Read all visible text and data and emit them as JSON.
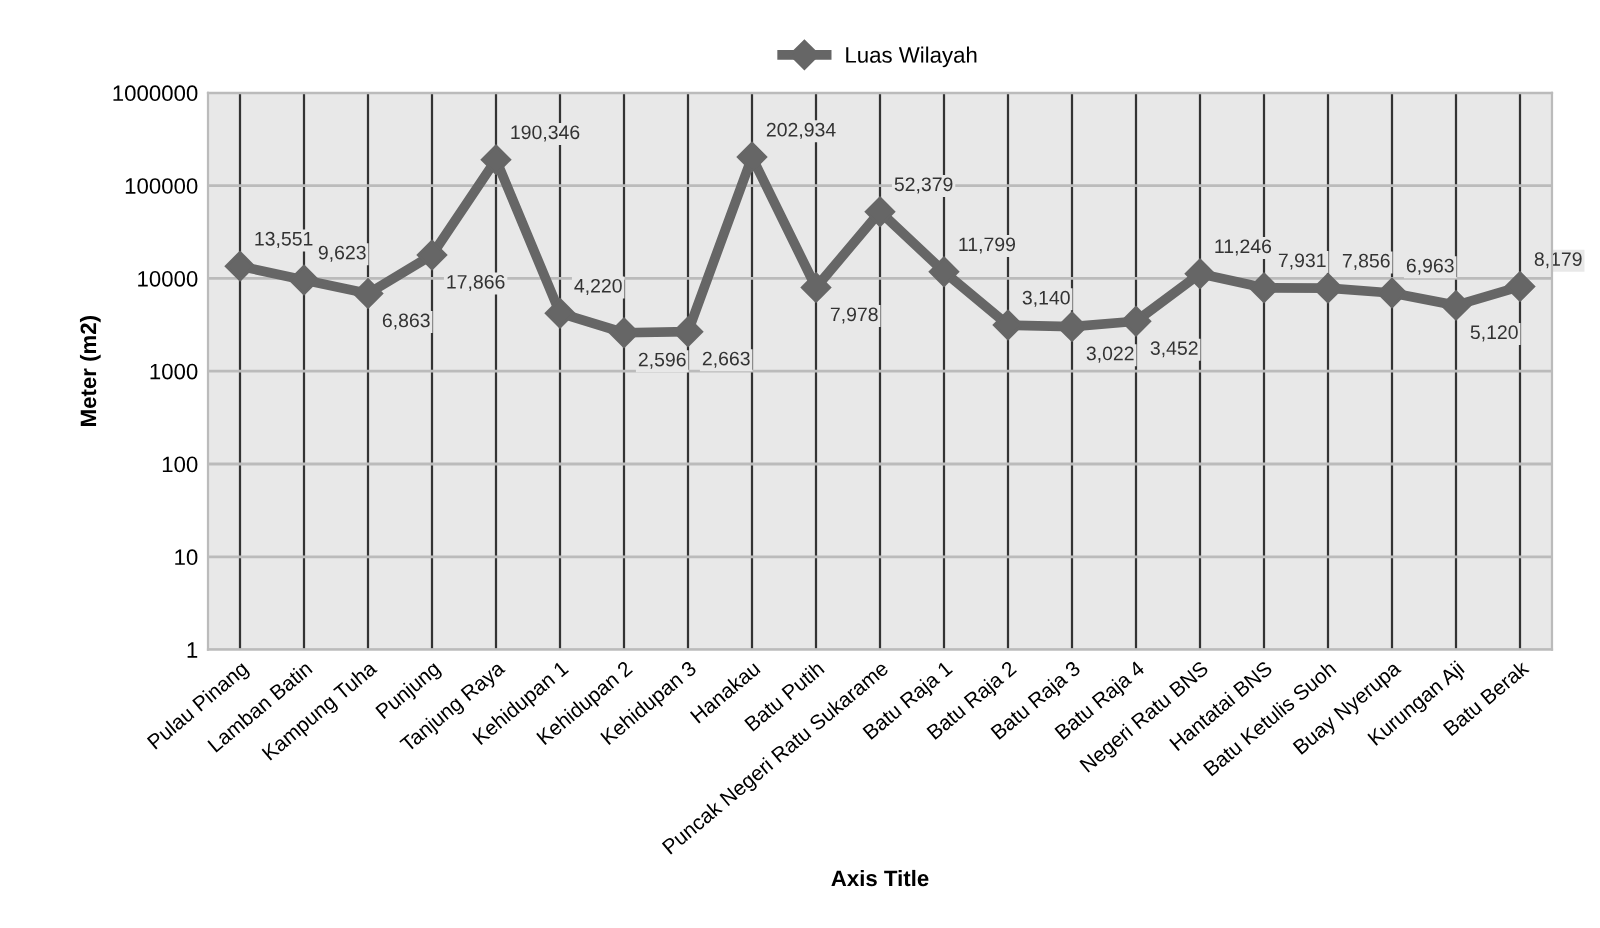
{
  "chart_data": {
    "type": "line",
    "xlabel": "Axis Title",
    "ylabel": "Meter (m2)",
    "categories": [
      "Pulau Pinang",
      "Lamban Batin",
      "Kampung Tuha",
      "Punjung",
      "Tanjung Raya",
      "Kehidupan 1",
      "Kehidupan 2",
      "Kehidupan 3",
      "Hanakau",
      "Batu Putih",
      "Puncak Negeri Ratu Sukarame",
      "Batu Raja 1",
      "Batu Raja 2",
      "Batu Raja 3",
      "Batu Raja 4",
      "Negeri Ratu BNS",
      "Hantatai BNS",
      "Batu Ketulis Suoh",
      "Buay Nyerupa",
      "Kurungan Aji",
      "Batu Berak"
    ],
    "series": [
      {
        "name": "Luas Wilayah",
        "color": "#666666",
        "values": [
          13551,
          9623,
          6863,
          17866,
          190346,
          4220,
          2596,
          2663,
          202934,
          7978,
          52379,
          11799,
          3140,
          3022,
          3452,
          11246,
          7931,
          7856,
          6963,
          5120,
          8179
        ],
        "value_labels": [
          "13,551",
          "9,623",
          "6,863",
          "17,866",
          "190,346",
          "4,220",
          "2,596",
          "2,663",
          "202,934",
          "7,978",
          "52,379",
          "11,799",
          "3,140",
          "3,022",
          "3,452",
          "11,246",
          "7,931",
          "7,856",
          "6,963",
          "5,120",
          "8,179"
        ]
      }
    ],
    "log": true,
    "ylim": [
      1,
      1000000
    ],
    "yticks": [
      1,
      10,
      100,
      1000,
      10000,
      100000,
      1000000
    ],
    "grid": true,
    "legend": "top",
    "marker": "diamond",
    "line_style": "solid"
  }
}
